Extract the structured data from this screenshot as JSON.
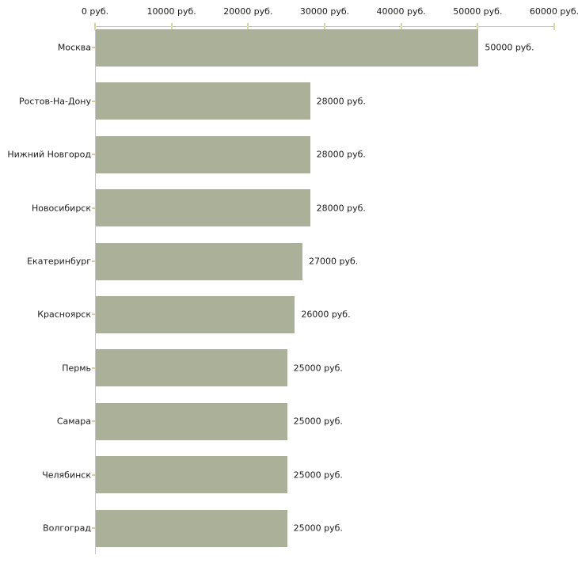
{
  "chart_data": {
    "type": "bar",
    "orientation": "horizontal",
    "title": "",
    "xlabel": "",
    "ylabel": "",
    "unit": "руб.",
    "categories": [
      "Москва",
      "Ростов-На-Дону",
      "Нижний Новгород",
      "Новосибирск",
      "Екатеринбург",
      "Красноярск",
      "Пермь",
      "Самара",
      "Челябинск",
      "Волгоград"
    ],
    "values": [
      50000,
      28000,
      28000,
      28000,
      27000,
      26000,
      25000,
      25000,
      25000,
      25000
    ],
    "value_labels": [
      "50000 руб.",
      "28000 руб.",
      "28000 руб.",
      "28000 руб.",
      "27000 руб.",
      "26000 руб.",
      "25000 руб.",
      "25000 руб.",
      "25000 руб.",
      "25000 руб."
    ],
    "x_ticks": [
      0,
      10000,
      20000,
      30000,
      40000,
      50000,
      60000
    ],
    "x_tick_labels": [
      "0 руб.",
      "10000 руб.",
      "20000 руб.",
      "30000 руб.",
      "40000 руб.",
      "50000 руб.",
      "60000 руб."
    ],
    "xlim": [
      0,
      60000
    ],
    "grid": false,
    "legend": false,
    "colors": {
      "bar": "#abb198",
      "axis": "#c6c6c6",
      "x_tick": "#d9d99f",
      "y_tick": "#d3cda4",
      "text": "#1a1a1a",
      "background": "#ffffff"
    }
  }
}
